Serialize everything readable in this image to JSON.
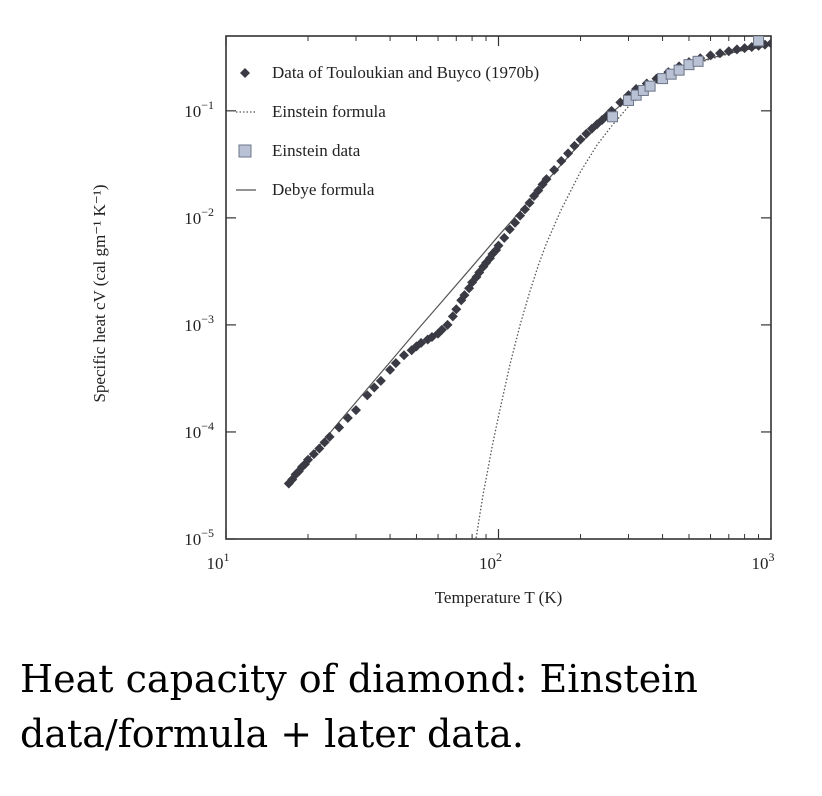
{
  "chart_data": {
    "type": "scatter",
    "title": "",
    "xlabel": "Temperature T (K)",
    "ylabel": "Specific heat cV (cal gm⁻¹ K⁻¹)",
    "x_scale": "log",
    "y_scale": "log",
    "xlim": [
      10,
      1000
    ],
    "ylim": [
      1e-05,
      0.5
    ],
    "x_ticks": [
      {
        "value": 10,
        "base": "10",
        "exp": "1"
      },
      {
        "value": 100,
        "base": "10",
        "exp": "2"
      },
      {
        "value": 1000,
        "base": "10",
        "exp": "3"
      }
    ],
    "y_ticks": [
      {
        "value": 1e-05,
        "base": "10",
        "exp": "−5"
      },
      {
        "value": 0.0001,
        "base": "10",
        "exp": "−4"
      },
      {
        "value": 0.001,
        "base": "10",
        "exp": "−3"
      },
      {
        "value": 0.01,
        "base": "10",
        "exp": "−2"
      },
      {
        "value": 0.1,
        "base": "10",
        "exp": "−1"
      }
    ],
    "grid": false,
    "legend_position": "top-left",
    "series": [
      {
        "name": "Data of Touloukian and Buyco (1970b)",
        "kind": "points",
        "marker": "diamond",
        "color": "#3a3a44",
        "x": [
          17,
          17.5,
          18,
          18.5,
          19,
          19.5,
          20,
          21,
          22,
          23,
          24,
          26,
          28,
          30,
          33,
          35,
          37,
          40,
          42,
          45,
          48,
          50,
          52,
          55,
          57,
          60,
          62,
          65,
          68,
          70,
          73,
          75,
          78,
          80,
          83,
          85,
          88,
          90,
          93,
          95,
          98,
          100,
          105,
          110,
          115,
          120,
          125,
          130,
          135,
          140,
          145,
          150,
          160,
          170,
          180,
          190,
          200,
          210,
          220,
          230,
          240,
          250,
          260,
          280,
          300,
          320,
          350,
          380,
          420,
          460,
          500,
          550,
          600,
          650,
          700,
          750,
          800,
          850,
          900,
          950,
          1000
        ],
        "y": [
          3.3e-05,
          3.6e-05,
          4e-05,
          4.3e-05,
          4.7e-05,
          5e-05,
          5.5e-05,
          6.2e-05,
          7e-05,
          8e-05,
          9e-05,
          0.00011,
          0.000135,
          0.00016,
          0.00022,
          0.00026,
          0.0003,
          0.00038,
          0.00044,
          0.00052,
          0.00058,
          0.00063,
          0.00068,
          0.00073,
          0.00077,
          0.00083,
          0.0009,
          0.001,
          0.0012,
          0.0014,
          0.0017,
          0.0019,
          0.0022,
          0.0025,
          0.0028,
          0.0031,
          0.0035,
          0.0038,
          0.0042,
          0.0046,
          0.005,
          0.0055,
          0.0065,
          0.0078,
          0.009,
          0.0105,
          0.012,
          0.0138,
          0.016,
          0.018,
          0.0205,
          0.023,
          0.028,
          0.034,
          0.04,
          0.047,
          0.054,
          0.061,
          0.068,
          0.075,
          0.082,
          0.09,
          0.1,
          0.12,
          0.14,
          0.16,
          0.18,
          0.2,
          0.23,
          0.26,
          0.285,
          0.31,
          0.33,
          0.345,
          0.36,
          0.375,
          0.385,
          0.395,
          0.405,
          0.415,
          0.425
        ]
      },
      {
        "name": "Einstein formula",
        "kind": "line",
        "style": "dotted",
        "color": "#555555",
        "x": [
          82,
          84,
          86,
          88,
          90,
          95,
          100,
          110,
          120,
          130,
          140,
          150,
          170,
          200,
          230,
          260,
          300,
          350,
          400,
          500,
          600,
          700,
          800,
          900,
          1000
        ],
        "y": [
          8.8e-06,
          1.3e-05,
          1.9e-05,
          2.7e-05,
          3.6e-05,
          7.5e-05,
          0.00014,
          0.00042,
          0.001,
          0.002,
          0.0036,
          0.0058,
          0.012,
          0.027,
          0.048,
          0.072,
          0.11,
          0.155,
          0.195,
          0.26,
          0.305,
          0.34,
          0.37,
          0.39,
          0.41
        ]
      },
      {
        "name": "Einstein data",
        "kind": "points",
        "marker": "square",
        "color": "#b8c2d4",
        "x": [
          262,
          300,
          320,
          340,
          360,
          400,
          430,
          460,
          500,
          540,
          900
        ],
        "y": [
          0.088,
          0.125,
          0.14,
          0.155,
          0.17,
          0.2,
          0.22,
          0.24,
          0.27,
          0.29,
          0.45
        ]
      },
      {
        "name": "Debye formula",
        "kind": "line",
        "style": "solid",
        "color": "#555555",
        "x": [
          17,
          20,
          25,
          30,
          40,
          50,
          60,
          80,
          100,
          120,
          150,
          200,
          250,
          300,
          400,
          500,
          600,
          700,
          800,
          1000
        ],
        "y": [
          3.3e-05,
          5.5e-05,
          0.00011,
          0.00019,
          0.00045,
          0.00088,
          0.0015,
          0.0035,
          0.0068,
          0.0115,
          0.022,
          0.05,
          0.088,
          0.13,
          0.205,
          0.265,
          0.31,
          0.345,
          0.37,
          0.41
        ]
      }
    ]
  },
  "caption": {
    "line1": "Heat capacity of diamond: Einstein",
    "line2": "data/formula + later data."
  }
}
